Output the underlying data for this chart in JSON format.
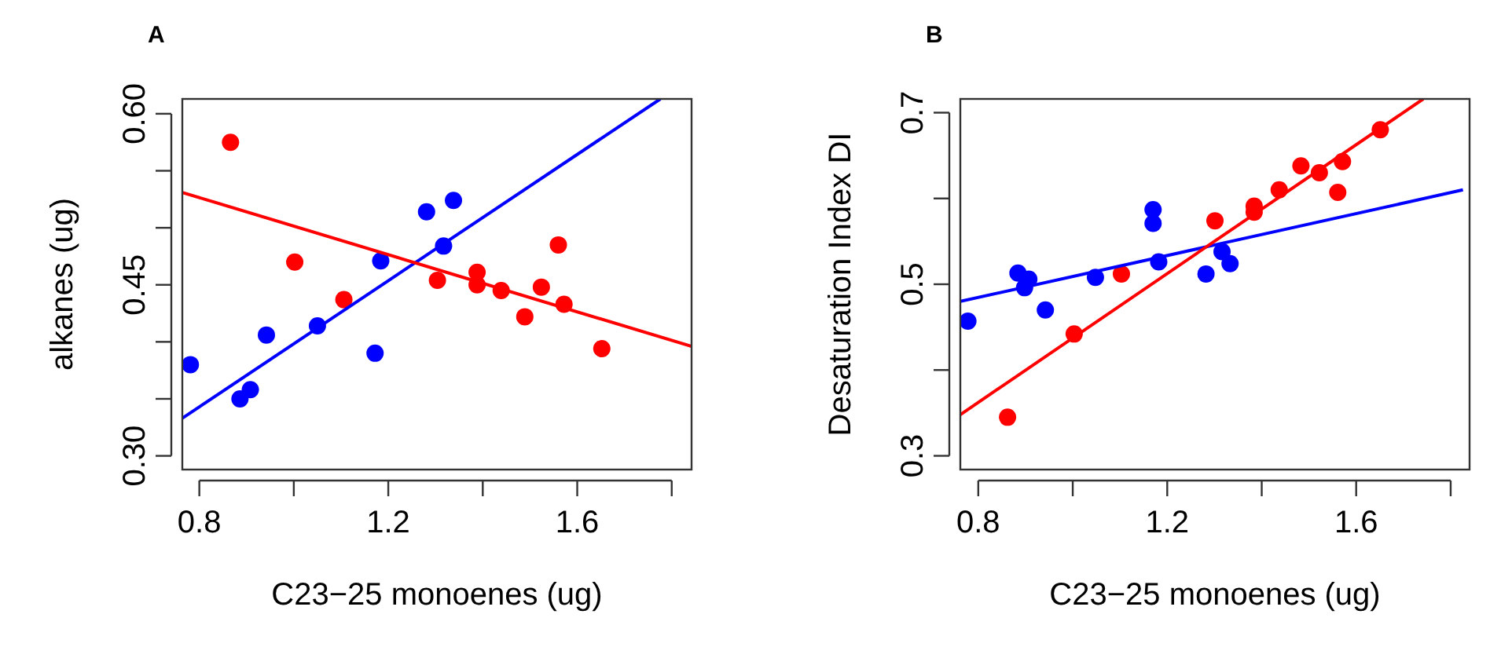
{
  "chart_data": [
    {
      "type": "scatter",
      "title": "A",
      "xlabel": "C23−25 monoenes (ug)",
      "ylabel": "alkanes (ug)",
      "marker": "circle",
      "grid": false,
      "xlim": [
        0.764,
        1.842
      ],
      "ylim": [
        0.288,
        0.613
      ],
      "xticks": [
        0.8,
        {
          "value": 1.0,
          "label": null
        },
        1.2,
        {
          "value": 1.4,
          "label": null
        },
        1.6,
        {
          "value": 1.8,
          "label": null
        }
      ],
      "yticks": [
        {
          "value": 0.3,
          "label": "0.30"
        },
        {
          "value": 0.35,
          "label": null
        },
        {
          "value": 0.4,
          "label": null
        },
        0.45,
        {
          "value": 0.5,
          "label": null
        },
        {
          "value": 0.55,
          "label": null
        },
        {
          "value": 0.6,
          "label": "0.60"
        }
      ],
      "series": [
        {
          "color": "#0000ff",
          "x": [
            0.781,
            0.886,
            0.908,
            0.942,
            1.05,
            1.172,
            1.184,
            1.281,
            1.317,
            1.338
          ],
          "values": [
            0.38,
            0.35,
            0.358,
            0.406,
            0.414,
            0.39,
            0.471,
            0.514,
            0.484,
            0.524
          ]
        },
        {
          "color": "#ff0000",
          "x": [
            0.866,
            1.002,
            1.106,
            1.304,
            1.388,
            1.388,
            1.439,
            1.489,
            1.524,
            1.56,
            1.572,
            1.652
          ],
          "values": [
            0.575,
            0.47,
            0.437,
            0.454,
            0.461,
            0.45,
            0.445,
            0.422,
            0.448,
            0.485,
            0.433,
            0.394
          ]
        },
        {
          "type": "line",
          "color": "#0000ff",
          "marker": "none",
          "x": [
            0.764,
            1.776
          ],
          "values": [
            0.333,
            0.613
          ]
        },
        {
          "type": "line",
          "color": "#ff0000",
          "marker": "none",
          "x": [
            0.764,
            1.842
          ],
          "values": [
            0.531,
            0.396
          ]
        }
      ]
    },
    {
      "type": "scatter",
      "title": "B",
      "xlabel": "C23−25 monoenes (ug)",
      "ylabel": "Desaturation Index DI",
      "marker": "circle",
      "grid": false,
      "xlim": [
        0.762,
        1.84
      ],
      "ylim": [
        0.284,
        0.716
      ],
      "xticks": [
        0.8,
        {
          "value": 1.0,
          "label": null
        },
        1.2,
        {
          "value": 1.4,
          "label": null
        },
        1.6,
        {
          "value": 1.8,
          "label": null
        }
      ],
      "yticks": [
        0.3,
        {
          "value": 0.4,
          "label": null
        },
        0.5,
        {
          "value": 0.6,
          "label": null
        },
        0.7
      ],
      "series": [
        {
          "color": "#0000ff",
          "x": [
            0.778,
            0.884,
            0.907,
            0.898,
            0.942,
            1.048,
            1.17,
            1.17,
            1.182,
            1.282,
            1.316,
            1.333
          ],
          "values": [
            0.457,
            0.513,
            0.506,
            0.496,
            0.47,
            0.508,
            0.587,
            0.571,
            0.526,
            0.512,
            0.538,
            0.524
          ]
        },
        {
          "color": "#ff0000",
          "x": [
            0.862,
            1.003,
            1.103,
            1.301,
            1.384,
            1.384,
            1.437,
            1.483,
            1.522,
            1.561,
            1.571,
            1.651
          ],
          "values": [
            0.345,
            0.442,
            0.512,
            0.574,
            0.584,
            0.591,
            0.61,
            0.638,
            0.63,
            0.607,
            0.643,
            0.68
          ]
        },
        {
          "type": "line",
          "color": "#0000ff",
          "marker": "none",
          "x": [
            0.762,
            1.826
          ],
          "values": [
            0.48,
            0.61
          ]
        },
        {
          "type": "line",
          "color": "#ff0000",
          "marker": "none",
          "x": [
            0.762,
            1.742
          ],
          "values": [
            0.348,
            0.716
          ]
        }
      ]
    }
  ]
}
